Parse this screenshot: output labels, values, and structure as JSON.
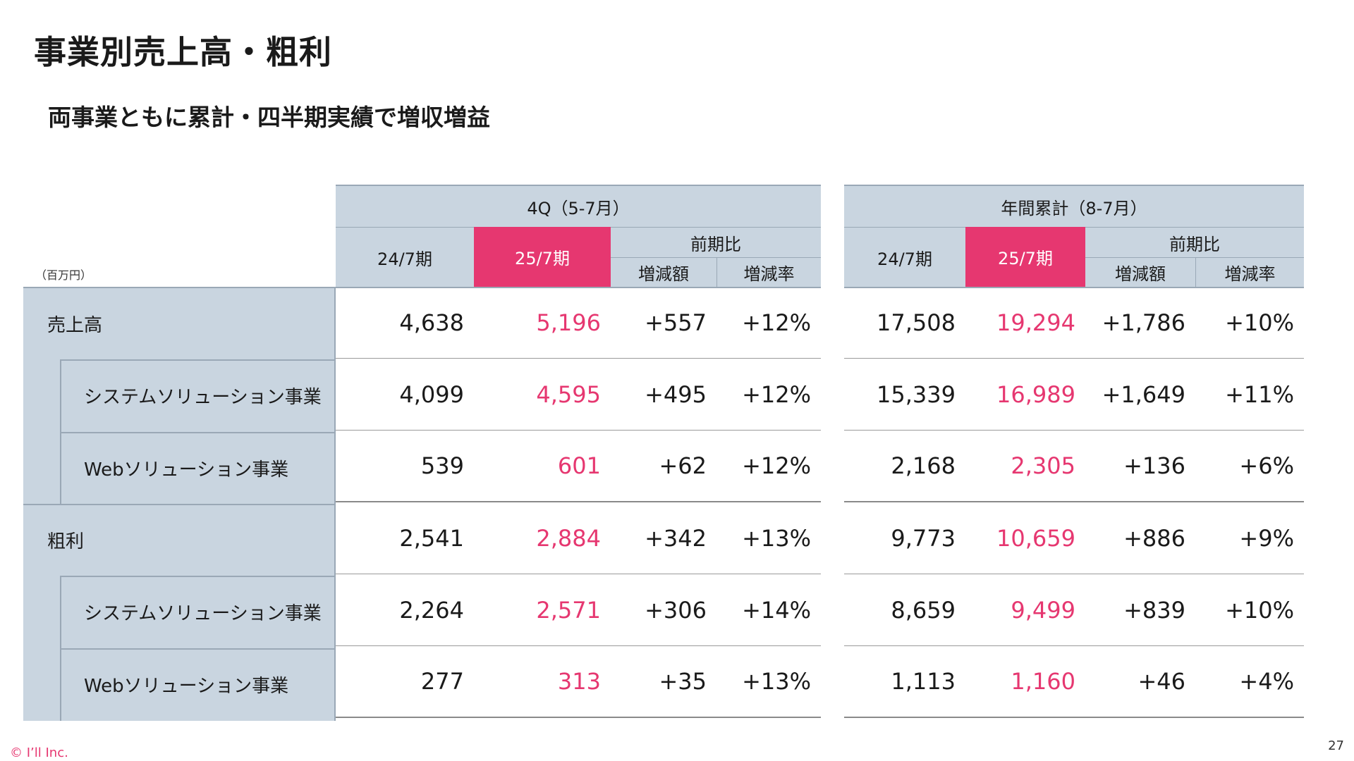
{
  "title": "事業別売上高・粗利",
  "subtitle": "両事業ともに累計・四半期実績で増収増益",
  "unit": "（百万円）",
  "rows": [
    {
      "label": "売上高",
      "level": "main"
    },
    {
      "label": "システムソリューション事業",
      "level": "sub"
    },
    {
      "label": "Webソリューション事業",
      "level": "sub"
    },
    {
      "label": "粗利",
      "level": "main"
    },
    {
      "label": "システムソリューション事業",
      "level": "sub"
    },
    {
      "label": "Webソリューション事業",
      "level": "sub"
    }
  ],
  "q4": {
    "title": "4Q（5-7月）",
    "prev_label": "24/7期",
    "curr_label": "25/7期",
    "compare_label": "前期比",
    "diff_label": "増減額",
    "rate_label": "増減率",
    "values": [
      [
        "4,638",
        "5,196",
        "+557",
        "+12%"
      ],
      [
        "4,099",
        "4,595",
        "+495",
        "+12%"
      ],
      [
        "539",
        "601",
        "+62",
        "+12%"
      ],
      [
        "2,541",
        "2,884",
        "+342",
        "+13%"
      ],
      [
        "2,264",
        "2,571",
        "+306",
        "+14%"
      ],
      [
        "277",
        "313",
        "+35",
        "+13%"
      ]
    ]
  },
  "annual": {
    "title": "年間累計（8-7月）",
    "prev_label": "24/7期",
    "curr_label": "25/7期",
    "compare_label": "前期比",
    "diff_label": "増減額",
    "rate_label": "増減率",
    "values": [
      [
        "17,508",
        "19,294",
        "+1,786",
        "+10%"
      ],
      [
        "15,339",
        "16,989",
        "+1,649",
        "+11%"
      ],
      [
        "2,168",
        "2,305",
        "+136",
        "+6%"
      ],
      [
        "9,773",
        "10,659",
        "+886",
        "+9%"
      ],
      [
        "8,659",
        "9,499",
        "+839",
        "+10%"
      ],
      [
        "1,113",
        "1,160",
        "+46",
        "+4%"
      ]
    ]
  },
  "footer": {
    "copyright": "© I’ll Inc.",
    "page_number": "27"
  },
  "colors": {
    "accent": "#e63770",
    "header_bg": "#c9d5e0",
    "text": "#1a1a1a"
  }
}
